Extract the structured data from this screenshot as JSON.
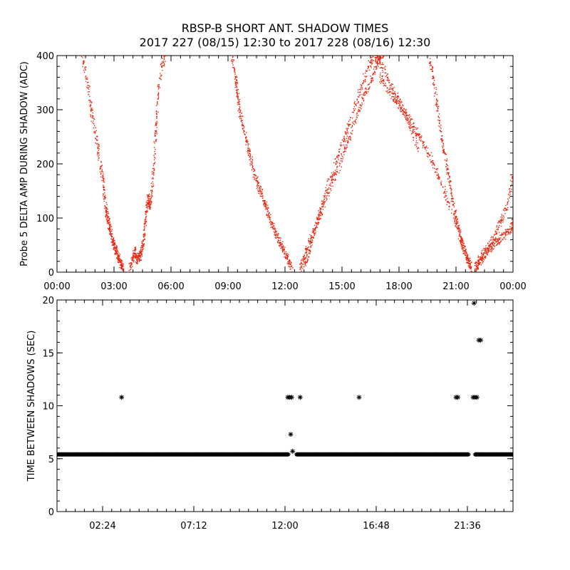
{
  "title_line1": "RBSP-B SHORT ANT. SHADOW TIMES",
  "title_line2": "2017 227 (08/15) 12:30 to 2017 228 (08/16) 12:30",
  "colors": {
    "top_points": "#e8250c",
    "bottom_points": "#000000",
    "axes": "#000000"
  },
  "chart_data": [
    {
      "type": "scatter",
      "ylabel": "Probe 5 DELTA AMP DURING SHADOW (ADC)",
      "xlabel": "",
      "x_unit": "hours",
      "xlim": [
        0,
        24
      ],
      "ylim": [
        0,
        400
      ],
      "x_ticks": [
        0,
        3,
        6,
        9,
        12,
        15,
        18,
        21,
        24
      ],
      "x_tick_labels": [
        "00:00",
        "03:00",
        "06:00",
        "09:00",
        "12:00",
        "15:00",
        "18:00",
        "21:00",
        "00:00"
      ],
      "y_ticks": [
        0,
        100,
        200,
        300,
        400
      ],
      "y_tick_labels": [
        "0",
        "100",
        "200",
        "300",
        "400"
      ],
      "marker": "dot",
      "series": [
        {
          "x": [
            1.3,
            1.6,
            1.8,
            2.0,
            2.2,
            2.4,
            2.5,
            2.6,
            2.7,
            2.8,
            2.9,
            3.0,
            3.1,
            3.2,
            3.3,
            3.4,
            3.5
          ],
          "y": [
            400,
            350,
            300,
            260,
            220,
            175,
            140,
            110,
            95,
            80,
            65,
            52,
            40,
            30,
            20,
            12,
            6
          ]
        },
        {
          "x": [
            3.8,
            4.0,
            4.1,
            4.2,
            4.3,
            4.4,
            4.5,
            4.6,
            4.7,
            4.8,
            4.9,
            5.0,
            5.1,
            5.2,
            5.3,
            5.5,
            5.7
          ],
          "y": [
            3,
            25,
            40,
            22,
            28,
            30,
            48,
            70,
            110,
            140,
            120,
            150,
            200,
            260,
            320,
            380,
            400
          ]
        },
        {
          "x": [
            9.2,
            9.4,
            9.5,
            9.6,
            9.8,
            10.0,
            10.2,
            10.4,
            10.6,
            10.8,
            11.0,
            11.2,
            11.4,
            11.6,
            11.8,
            12.0,
            12.2,
            12.4
          ],
          "y": [
            400,
            360,
            330,
            300,
            270,
            240,
            210,
            180,
            160,
            140,
            120,
            100,
            80,
            65,
            50,
            35,
            20,
            8
          ]
        },
        {
          "x": [
            12.8,
            13.0,
            13.2,
            13.5,
            13.8,
            14.1,
            14.5,
            14.9,
            15.3,
            15.7,
            16.1,
            16.5,
            16.8,
            17.0,
            17.2
          ],
          "y": [
            5,
            25,
            45,
            75,
            100,
            130,
            165,
            200,
            240,
            280,
            320,
            350,
            380,
            400,
            400
          ]
        },
        {
          "x": [
            13.0,
            13.3,
            13.6,
            14.0,
            14.4,
            14.8,
            15.2,
            15.6,
            16.0,
            16.4,
            16.7,
            17.0,
            17.4,
            17.8,
            18.2,
            18.6,
            19.0
          ],
          "y": [
            10,
            40,
            80,
            130,
            175,
            215,
            255,
            295,
            340,
            380,
            400,
            390,
            360,
            330,
            300,
            270,
            230
          ]
        },
        {
          "x": [
            17.0,
            17.4,
            17.8,
            18.2,
            18.6,
            19.0,
            19.4,
            19.8,
            20.2,
            20.6,
            21.0,
            21.3,
            21.6,
            21.8
          ],
          "y": [
            360,
            340,
            320,
            300,
            280,
            255,
            230,
            200,
            165,
            130,
            90,
            55,
            25,
            8
          ]
        },
        {
          "x": [
            19.6,
            19.8,
            20.0,
            20.2,
            20.4,
            20.6,
            20.8,
            21.0,
            21.2,
            21.4,
            21.6,
            21.8
          ],
          "y": [
            400,
            360,
            310,
            260,
            220,
            180,
            140,
            100,
            70,
            45,
            25,
            10
          ]
        },
        {
          "x": [
            22.0,
            22.2,
            22.5,
            22.8,
            23.1,
            23.4,
            23.7,
            24.0
          ],
          "y": [
            5,
            20,
            35,
            50,
            70,
            95,
            125,
            180
          ]
        },
        {
          "x": [
            22.1,
            22.4,
            22.7,
            23.0,
            23.3,
            23.6,
            23.9,
            24.0
          ],
          "y": [
            10,
            25,
            40,
            50,
            60,
            70,
            80,
            90
          ]
        }
      ]
    },
    {
      "type": "scatter",
      "ylabel": "TIME BETWEEN SHADOWS (SEC)",
      "xlabel": "",
      "x_unit": "hours",
      "xlim": [
        0,
        24
      ],
      "ylim": [
        0,
        20
      ],
      "x_ticks": [
        2.4,
        7.2,
        12.0,
        16.8,
        21.6
      ],
      "x_tick_labels": [
        "02:24",
        "07:12",
        "12:00",
        "16:48",
        "21:36"
      ],
      "y_ticks": [
        0,
        5,
        10,
        15,
        20
      ],
      "y_tick_labels": [
        "0",
        "5",
        "10",
        "15",
        "20"
      ],
      "marker": "asterisk",
      "baseline": {
        "y": 5.4,
        "x_ranges": [
          [
            0,
            12.2
          ],
          [
            12.6,
            21.7
          ],
          [
            22.0,
            24
          ]
        ]
      },
      "points": {
        "x": [
          3.4,
          12.15,
          12.25,
          12.35,
          12.3,
          12.4,
          12.8,
          15.9,
          21.0,
          21.1,
          21.9,
          22.0,
          22.1,
          22.2,
          22.3,
          21.95
        ],
        "y": [
          10.8,
          10.8,
          10.8,
          10.8,
          7.3,
          5.7,
          10.8,
          10.8,
          10.8,
          10.8,
          10.8,
          10.8,
          10.8,
          16.2,
          16.2,
          19.7
        ]
      }
    }
  ]
}
